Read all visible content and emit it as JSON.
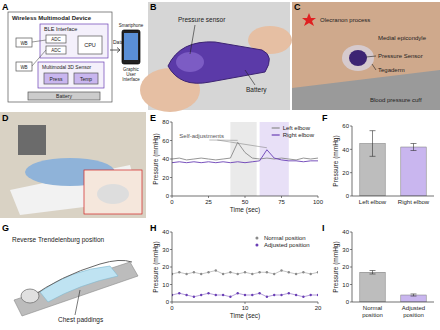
{
  "figure": {
    "panel_labels": [
      "A",
      "B",
      "C",
      "D",
      "E",
      "F",
      "G",
      "H",
      "I"
    ]
  },
  "diagram_a": {
    "title": "Wireless Multimodal Device",
    "ble": "BLE Interface",
    "adc": [
      "ADC",
      "ADC"
    ],
    "cpu": "CPU",
    "wb": [
      "WB",
      "WB"
    ],
    "sensor": "Multimodal 3D Sensor",
    "press": "Press",
    "temp": "Temp",
    "battery": "Battery",
    "data": "Data",
    "phone": "Smartphone",
    "gui": "Graphic User Interface"
  },
  "photo_b": {
    "labels": [
      "Pressure sensor",
      "Battery"
    ]
  },
  "photo_c": {
    "labels": [
      "Olecranon process",
      "Medial epicondyle",
      "Pressure Sensor",
      "Tegaderm",
      "Blood pressure cuff"
    ]
  },
  "diagram_g": {
    "title": "Reverse Trendelenburg position",
    "label": "Chest paddings"
  },
  "chart_data": [
    {
      "type": "line",
      "x_label": "Time (sec)",
      "y_label": "Pressure (mmHg)",
      "annotation": "Self-adjustments",
      "x": [
        0,
        5,
        10,
        15,
        20,
        25,
        30,
        35,
        40,
        45,
        50,
        55,
        60,
        65,
        70,
        75,
        80,
        85,
        90,
        95,
        100
      ],
      "series": [
        {
          "name": "Left elbow",
          "color": "#8a8a8a",
          "values": [
            40,
            41,
            39,
            40,
            41,
            40,
            39,
            40,
            41,
            58,
            47,
            41,
            40,
            41,
            40,
            41,
            40,
            39,
            41,
            40,
            41
          ]
        },
        {
          "name": "Right elbow",
          "color": "#6a3fb5",
          "values": [
            36,
            37,
            36,
            37,
            36,
            37,
            36,
            37,
            36,
            37,
            36,
            37,
            38,
            50,
            41,
            39,
            38,
            38,
            37,
            38,
            38
          ]
        }
      ],
      "spans": [
        {
          "x": [
            40,
            58
          ],
          "color": "#dcdcdc"
        },
        {
          "x": [
            60,
            80
          ],
          "color": "#d9ccf2"
        }
      ],
      "xlim": [
        0,
        100
      ],
      "xticks": [
        0,
        25,
        50,
        75,
        100
      ],
      "ylim": [
        0,
        80
      ],
      "yticks": [
        0,
        20,
        40,
        60,
        80
      ],
      "legend": "upper right",
      "grid": false
    },
    {
      "type": "bar",
      "y_label": "Pressure (mmHg)",
      "categories": [
        "Left elbow",
        "Right elbow"
      ],
      "values": [
        45,
        42
      ],
      "errors": [
        11,
        3
      ],
      "colors": [
        "#bdbdbd",
        "#c9b6ef"
      ],
      "ylim": [
        0,
        60
      ],
      "yticks": [
        0,
        20,
        40,
        60
      ],
      "grid": false
    },
    {
      "type": "line",
      "x_label": "Time (sec)",
      "y_label": "Pressure (mmHg)",
      "x": [
        0,
        1,
        2,
        3,
        4,
        5,
        6,
        7,
        8,
        9,
        10,
        11,
        12,
        13,
        14,
        15,
        16,
        17,
        18,
        19,
        20
      ],
      "series": [
        {
          "name": "Normal position",
          "color": "#8a8a8a",
          "marker": "circle",
          "line_style": "solid",
          "values": [
            16,
            17,
            16,
            17,
            16,
            17,
            18,
            16,
            17,
            16,
            17,
            16,
            17,
            17,
            16,
            18,
            17,
            16,
            17,
            16,
            17
          ]
        },
        {
          "name": "Adjusted position",
          "color": "#6a3fb5",
          "marker": "circle",
          "line_style": "solid",
          "values": [
            4,
            5,
            4,
            3,
            4,
            5,
            4,
            4,
            3,
            5,
            4,
            4,
            5,
            3,
            4,
            4,
            5,
            4,
            3,
            4,
            4
          ]
        }
      ],
      "xlim": [
        0,
        20
      ],
      "xticks": [
        0,
        10,
        20
      ],
      "ylim": [
        0,
        40
      ],
      "yticks": [
        0,
        10,
        20,
        30,
        40
      ],
      "legend": "upper right",
      "grid": false
    },
    {
      "type": "bar",
      "y_label": "Pressure (mmHg)",
      "categories": [
        "Normal position",
        "Adjusted position"
      ],
      "values": [
        17,
        4
      ],
      "errors": [
        1,
        0.6
      ],
      "colors": [
        "#bdbdbd",
        "#c9b6ef"
      ],
      "ylim": [
        0,
        40
      ],
      "yticks": [
        0,
        10,
        20,
        30,
        40
      ],
      "grid": false
    }
  ]
}
